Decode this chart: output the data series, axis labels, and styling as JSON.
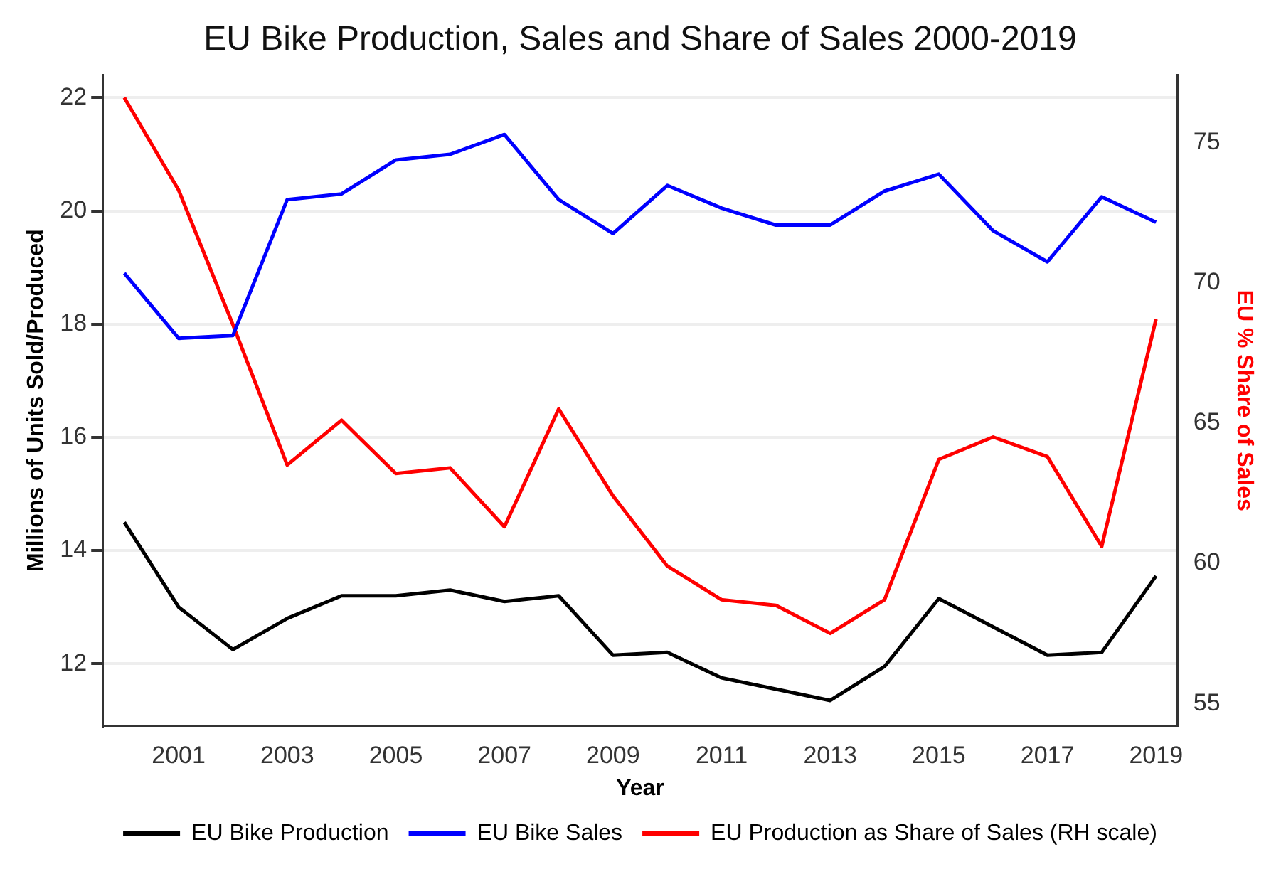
{
  "chart_data": {
    "type": "line",
    "title": "EU Bike Production, Sales and Share of Sales 2000-2019",
    "xlabel": "Year",
    "ylabel": "Millions of Units Sold/Produced",
    "y2label": "EU % Share of Sales",
    "x": [
      2000,
      2001,
      2002,
      2003,
      2004,
      2005,
      2006,
      2007,
      2008,
      2009,
      2010,
      2011,
      2012,
      2013,
      2014,
      2015,
      2016,
      2017,
      2018,
      2019
    ],
    "series": [
      {
        "name": "EU Bike Production",
        "color": "#000000",
        "values": [
          14.5,
          13.0,
          12.25,
          12.8,
          13.2,
          13.2,
          13.3,
          13.1,
          13.2,
          12.15,
          12.2,
          11.75,
          11.55,
          11.35,
          11.95,
          13.15,
          12.65,
          12.15,
          12.2,
          13.55
        ]
      },
      {
        "name": "EU Bike Sales",
        "color": "#0000ff",
        "values": [
          18.9,
          17.75,
          17.8,
          20.2,
          20.3,
          20.9,
          21.0,
          21.35,
          20.2,
          19.6,
          20.45,
          20.05,
          19.75,
          19.75,
          20.35,
          20.65,
          19.65,
          19.1,
          20.25,
          19.8
        ]
      },
      {
        "name": "EU Production as Share of Sales (RH scale)",
        "color": "#ff0000",
        "axis": "y2",
        "values": [
          76.6,
          73.3,
          68.5,
          63.5,
          65.1,
          63.2,
          63.4,
          61.3,
          65.5,
          62.4,
          59.9,
          58.7,
          58.5,
          57.5,
          58.7,
          63.7,
          64.5,
          63.8,
          60.6,
          68.7
        ]
      }
    ],
    "xlim": [
      1999.6,
      2019.4
    ],
    "xticks": [
      2001,
      2003,
      2005,
      2007,
      2009,
      2011,
      2013,
      2015,
      2017,
      2019
    ],
    "ylim": [
      10.9,
      22.4
    ],
    "yticks": [
      12,
      14,
      16,
      18,
      20,
      22
    ],
    "y2lim": [
      54.2,
      77.4
    ],
    "y2ticks": [
      55,
      60,
      65,
      70,
      75
    ],
    "grid": "y",
    "legend": "bottom",
    "marker": "none",
    "line_style": "solid"
  }
}
